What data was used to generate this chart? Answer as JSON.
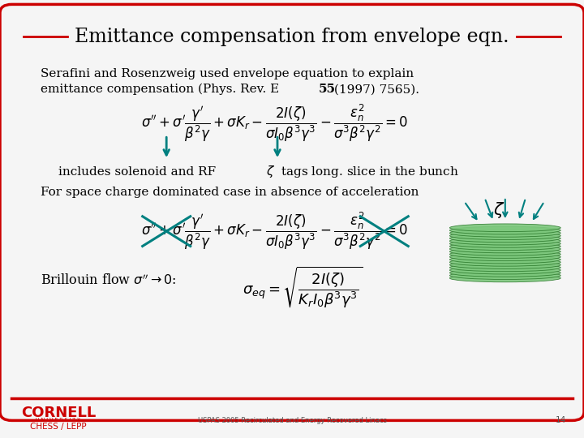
{
  "title": "Emittance compensation from envelope eqn.",
  "bg_color": "#f5f5f5",
  "border_color": "#cc0000",
  "title_color": "#000000",
  "text_color": "#000000",
  "arrow_color": "#008080",
  "cross_color": "#008080",
  "body_text1": "Serafini and Rosenzweig used envelope equation to explain",
  "body_text2a": "emittance compensation (Phys. Rev. E ",
  "body_text2b": "55",
  "body_text2c": " (1997) 7565).",
  "text_spacechg": "For space charge dominated case in absence of acceleration",
  "footer_text": "USPAS 2005 Recirculated and Energy Recovered Linacs",
  "footer_page": "14",
  "cornell_color": "#cc0000",
  "green_color": "#008060",
  "green_fill": "#7dc87d",
  "green_edge": "#2d7a2d"
}
